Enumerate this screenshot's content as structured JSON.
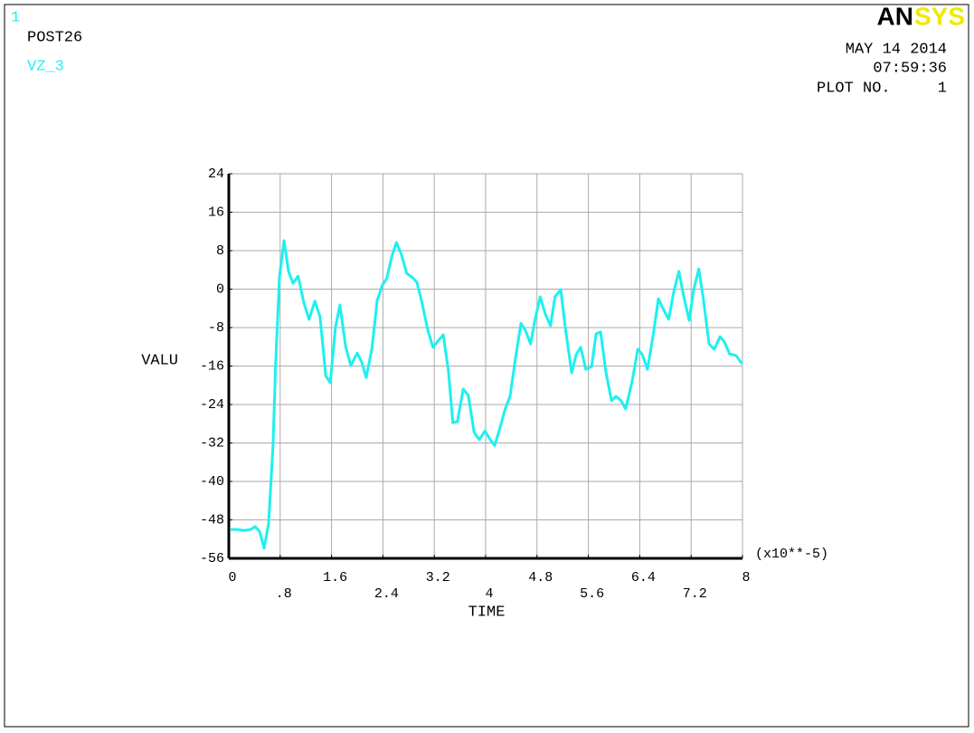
{
  "window_number": "1",
  "logo": {
    "left": "AN",
    "right": "SYS"
  },
  "date": "MAY 14 2014",
  "time": "07:59:36",
  "plot_label": "PLOT NO.",
  "plot_number": "1",
  "chart_data": {
    "type": "line",
    "title": "POST26",
    "x_label": "TIME",
    "y_label": "VALU",
    "x_multiplier": "(x10**-5)",
    "xlim": [
      0,
      8
    ],
    "ylim": [
      -56,
      24
    ],
    "xticks": [
      0,
      {
        "value": 0.8,
        "label": ".8"
      },
      1.6,
      2.4,
      3.2,
      4,
      4.8,
      5.6,
      6.4,
      7.2,
      8
    ],
    "yticks": [
      24,
      16,
      8,
      0,
      -8,
      -16,
      -24,
      -32,
      -40,
      -48,
      -56
    ],
    "grid": true,
    "x": [
      0.03,
      0.13,
      0.24,
      0.34,
      0.41,
      0.48,
      0.55,
      0.62,
      0.69,
      0.73,
      0.79,
      0.86,
      0.93,
      1.0,
      1.08,
      1.17,
      1.25,
      1.34,
      1.42,
      1.51,
      1.58,
      1.66,
      1.73,
      1.82,
      1.9,
      2.0,
      2.07,
      2.14,
      2.23,
      2.31,
      2.39,
      2.46,
      2.54,
      2.61,
      2.69,
      2.77,
      2.86,
      2.93,
      3.01,
      3.1,
      3.18,
      3.27,
      3.34,
      3.42,
      3.49,
      3.56,
      3.65,
      3.73,
      3.82,
      3.9,
      3.99,
      4.07,
      4.14,
      4.21,
      4.3,
      4.38,
      4.46,
      4.55,
      4.62,
      4.7,
      4.77,
      4.85,
      4.93,
      5.01,
      5.08,
      5.17,
      5.24,
      5.34,
      5.41,
      5.48,
      5.56,
      5.65,
      5.72,
      5.79,
      5.87,
      5.96,
      6.03,
      6.11,
      6.18,
      6.28,
      6.37,
      6.44,
      6.52,
      6.61,
      6.69,
      6.76,
      6.85,
      6.93,
      7.01,
      7.08,
      7.17,
      7.24,
      7.32,
      7.39,
      7.48,
      7.56,
      7.65,
      7.72,
      7.8,
      7.9,
      7.99
    ],
    "series": [
      {
        "name": "VZ_3",
        "color": "#1ef0f0",
        "values": [
          -50.0,
          -50.0,
          -50.2,
          -50.0,
          -49.4,
          -50.4,
          -53.9,
          -48.7,
          -32.1,
          -15.2,
          2.7,
          10.1,
          3.7,
          1.2,
          2.7,
          -2.9,
          -6.3,
          -2.5,
          -5.7,
          -18.0,
          -19.5,
          -8.0,
          -3.3,
          -12.0,
          -15.9,
          -13.3,
          -15.2,
          -18.4,
          -12.3,
          -2.4,
          0.8,
          2.2,
          6.9,
          9.7,
          7.1,
          3.3,
          2.4,
          1.4,
          -2.9,
          -8.6,
          -12.1,
          -10.6,
          -9.5,
          -17.0,
          -27.8,
          -27.6,
          -20.8,
          -22.1,
          -29.8,
          -31.3,
          -29.5,
          -31.3,
          -32.5,
          -29.5,
          -25.1,
          -22.3,
          -14.8,
          -7.1,
          -8.6,
          -11.4,
          -6.3,
          -1.6,
          -5.2,
          -7.6,
          -1.6,
          -0.1,
          -8.0,
          -17.4,
          -13.6,
          -12.1,
          -16.7,
          -16.1,
          -9.3,
          -8.9,
          -17.0,
          -23.2,
          -22.3,
          -23.2,
          -24.9,
          -19.3,
          -12.5,
          -13.6,
          -16.7,
          -9.5,
          -2.0,
          -4.0,
          -6.3,
          -0.5,
          3.7,
          -1.2,
          -6.5,
          -0.1,
          4.2,
          -2.0,
          -11.4,
          -12.5,
          -9.9,
          -11.0,
          -13.5,
          -13.8,
          -15.5
        ]
      }
    ]
  }
}
